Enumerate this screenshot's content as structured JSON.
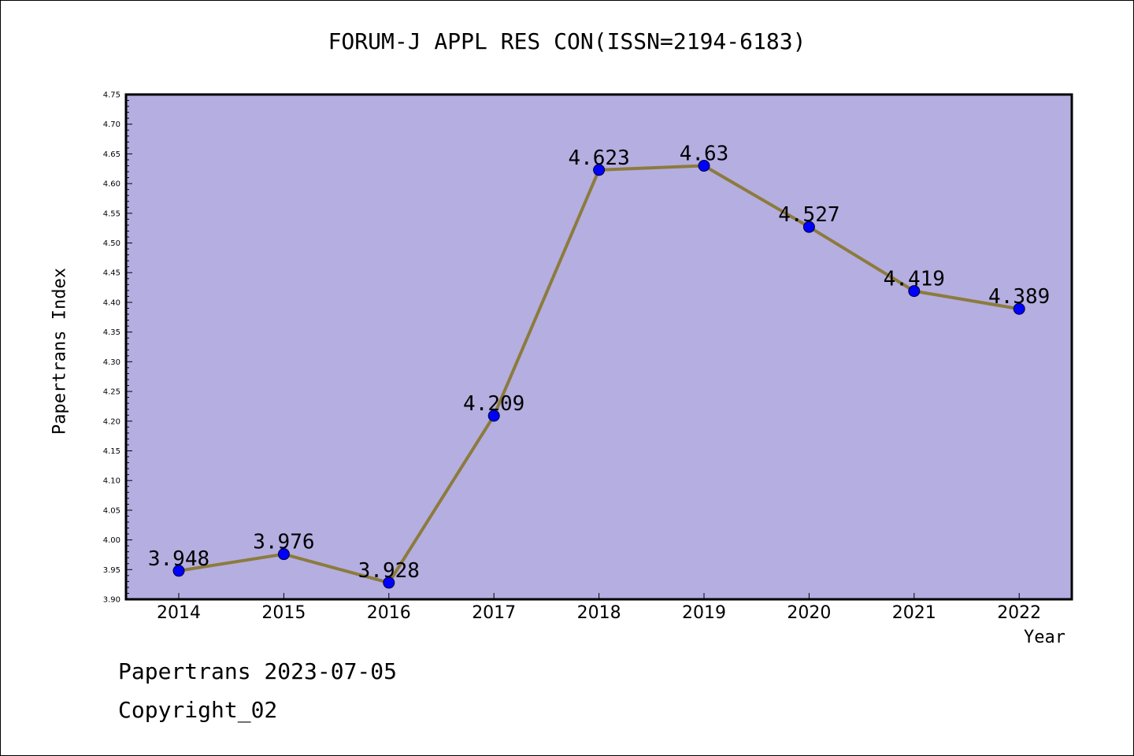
{
  "chart_data": {
    "type": "line",
    "title": "FORUM-J APPL RES CON(ISSN=2194-6183)",
    "xlabel": "Year",
    "ylabel": "Papertrans Index",
    "categories": [
      "2014",
      "2015",
      "2016",
      "2017",
      "2018",
      "2019",
      "2020",
      "2021",
      "2022"
    ],
    "series": [
      {
        "values": [
          3.948,
          3.976,
          3.928,
          4.209,
          4.623,
          4.63,
          4.527,
          4.419,
          4.389
        ],
        "data_labels": [
          "3.948",
          "3.976",
          "3.928",
          "4.209",
          "4.623",
          "4.63",
          "4.527",
          "4.419",
          "4.389"
        ]
      }
    ],
    "ylim": [
      3.9,
      4.75
    ],
    "yticks": [
      "3.90",
      "3.95",
      "4.00",
      "4.05",
      "4.10",
      "4.15",
      "4.20",
      "4.25",
      "4.30",
      "4.35",
      "4.40",
      "4.45",
      "4.50",
      "4.55",
      "4.60",
      "4.65",
      "4.70",
      "4.75"
    ],
    "grid": false,
    "colors": {
      "plot_background": "#b4aee1",
      "line": "#8c7b3c",
      "marker": "#0000ff"
    }
  },
  "footer": {
    "line1": "Papertrans 2023-07-05",
    "line2": "Copyright_02"
  }
}
